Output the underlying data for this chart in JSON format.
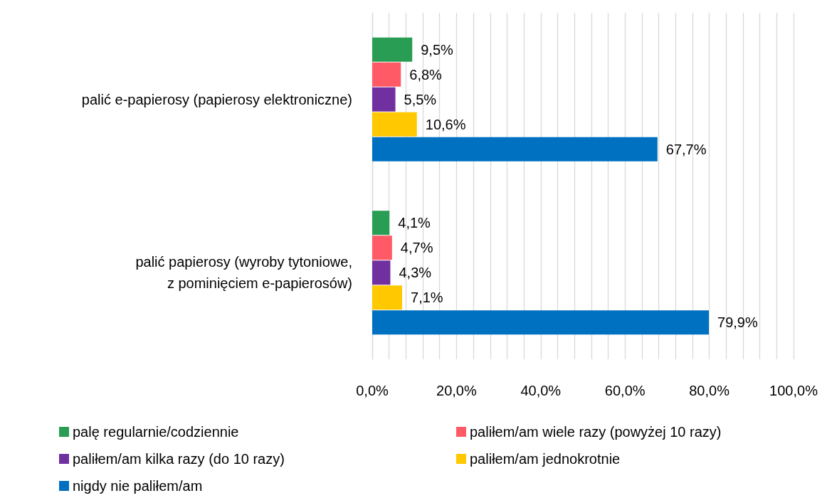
{
  "chart_data": {
    "type": "bar",
    "orientation": "horizontal",
    "categories": [
      "palić e-papierosy (papierosy elektroniczne)",
      "palić papierosy (wyroby tytoniowe,\nz pominięciem e-papierosów)"
    ],
    "series": [
      {
        "name": "palę regularnie/codziennie",
        "color": "#2a9d55",
        "values": [
          9.5,
          4.1
        ],
        "value_labels": [
          "9,5%",
          "4,1%"
        ]
      },
      {
        "name": "paliłem/am wiele razy (powyżej 10 razy)",
        "color": "#ff5a66",
        "values": [
          6.8,
          4.7
        ],
        "value_labels": [
          "6,8%",
          "4,7%"
        ]
      },
      {
        "name": "paliłem/am kilka razy (do 10 razy)",
        "color": "#7030a0",
        "values": [
          5.5,
          4.3
        ],
        "value_labels": [
          "5,5%",
          "4,3%"
        ]
      },
      {
        "name": "paliłem/am jednokrotnie",
        "color": "#ffc800",
        "values": [
          10.6,
          7.1
        ],
        "value_labels": [
          "10,6%",
          "7,1%"
        ]
      },
      {
        "name": "nigdy nie paliłem/am",
        "color": "#0070c0",
        "values": [
          67.7,
          79.9
        ],
        "value_labels": [
          "67,7%",
          "79,9%"
        ]
      }
    ],
    "xlim": [
      0,
      100
    ],
    "xticks": [
      {
        "value": 0,
        "label": "0,0%"
      },
      {
        "value": 4,
        "label": null
      },
      {
        "value": 8,
        "label": null
      },
      {
        "value": 12,
        "label": null
      },
      {
        "value": 16,
        "label": null
      },
      {
        "value": 20,
        "label": "20,0%"
      },
      {
        "value": 24,
        "label": null
      },
      {
        "value": 28,
        "label": null
      },
      {
        "value": 32,
        "label": null
      },
      {
        "value": 36,
        "label": null
      },
      {
        "value": 40,
        "label": "40,0%"
      },
      {
        "value": 44,
        "label": null
      },
      {
        "value": 48,
        "label": null
      },
      {
        "value": 52,
        "label": null
      },
      {
        "value": 56,
        "label": null
      },
      {
        "value": 60,
        "label": "60,0%"
      },
      {
        "value": 64,
        "label": null
      },
      {
        "value": 68,
        "label": null
      },
      {
        "value": 72,
        "label": null
      },
      {
        "value": 76,
        "label": null
      },
      {
        "value": 80,
        "label": "80,0%"
      },
      {
        "value": 84,
        "label": null
      },
      {
        "value": 88,
        "label": null
      },
      {
        "value": 92,
        "label": null
      },
      {
        "value": 96,
        "label": null
      },
      {
        "value": 100,
        "label": "100,0%"
      }
    ],
    "grid": true,
    "legend": "bottom"
  }
}
